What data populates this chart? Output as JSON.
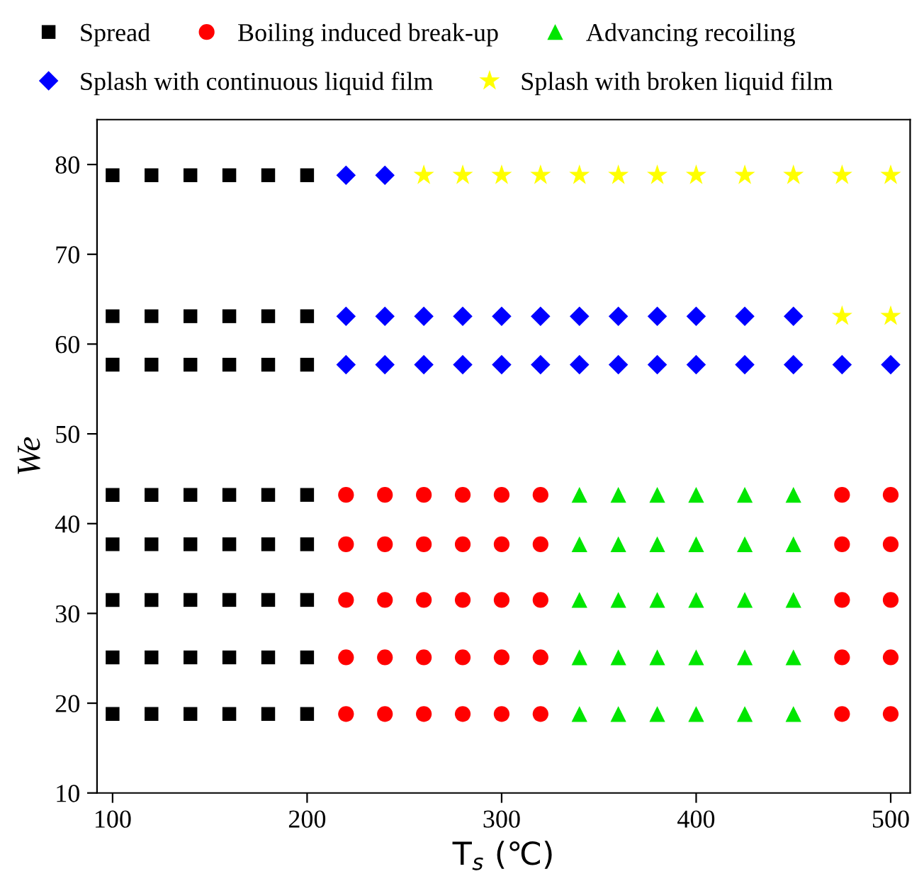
{
  "chart_data": {
    "type": "scatter",
    "xlabel": "T$_{s}$ (℃)",
    "ylabel": "We",
    "xlim": [
      92,
      510
    ],
    "xticks": [
      100,
      200,
      300,
      400,
      500
    ],
    "ylim": [
      10,
      85
    ],
    "yticks": [
      10,
      20,
      30,
      40,
      50,
      60,
      70,
      80
    ],
    "grid": false,
    "legend": "top",
    "series": [
      {
        "name": "Spread",
        "color": "#000000",
        "marker": "square",
        "x": [
          100,
          120,
          140,
          160,
          180,
          200,
          100,
          120,
          140,
          160,
          180,
          200,
          100,
          120,
          140,
          160,
          180,
          200,
          100,
          120,
          140,
          160,
          180,
          200,
          100,
          120,
          140,
          160,
          180,
          200,
          100,
          120,
          140,
          160,
          180,
          200,
          100,
          120,
          140,
          160,
          180,
          200,
          100,
          120,
          140,
          160,
          180,
          200
        ],
        "values": [
          78.8,
          78.8,
          78.8,
          78.8,
          78.8,
          78.8,
          63.1,
          63.1,
          63.1,
          63.1,
          63.1,
          63.1,
          57.7,
          57.7,
          57.7,
          57.7,
          57.7,
          57.7,
          43.2,
          43.2,
          43.2,
          43.2,
          43.2,
          43.2,
          37.7,
          37.7,
          37.7,
          37.7,
          37.7,
          37.7,
          31.5,
          31.5,
          31.5,
          31.5,
          31.5,
          31.5,
          25.1,
          25.1,
          25.1,
          25.1,
          25.1,
          25.1,
          18.8,
          18.8,
          18.8,
          18.8,
          18.8,
          18.8
        ]
      },
      {
        "name": "Boiling induced break-up",
        "color": "#ff0000",
        "marker": "circle",
        "x": [
          220,
          240,
          260,
          280,
          300,
          320,
          475,
          500,
          220,
          240,
          260,
          280,
          300,
          320,
          475,
          500,
          220,
          240,
          260,
          280,
          300,
          320,
          475,
          500,
          220,
          240,
          260,
          280,
          300,
          320,
          475,
          500,
          220,
          240,
          260,
          280,
          300,
          320,
          475,
          500
        ],
        "values": [
          43.2,
          43.2,
          43.2,
          43.2,
          43.2,
          43.2,
          43.2,
          43.2,
          37.7,
          37.7,
          37.7,
          37.7,
          37.7,
          37.7,
          37.7,
          37.7,
          31.5,
          31.5,
          31.5,
          31.5,
          31.5,
          31.5,
          31.5,
          31.5,
          25.1,
          25.1,
          25.1,
          25.1,
          25.1,
          25.1,
          25.1,
          25.1,
          18.8,
          18.8,
          18.8,
          18.8,
          18.8,
          18.8,
          18.8,
          18.8
        ]
      },
      {
        "name": "Advancing recoiling",
        "color": "#00e600",
        "marker": "triangle",
        "x": [
          340,
          360,
          380,
          400,
          425,
          450,
          340,
          360,
          380,
          400,
          425,
          450,
          340,
          360,
          380,
          400,
          425,
          450,
          340,
          360,
          380,
          400,
          425,
          450,
          340,
          360,
          380,
          400,
          425,
          450
        ],
        "values": [
          43.2,
          43.2,
          43.2,
          43.2,
          43.2,
          43.2,
          37.7,
          37.7,
          37.7,
          37.7,
          37.7,
          37.7,
          31.5,
          31.5,
          31.5,
          31.5,
          31.5,
          31.5,
          25.1,
          25.1,
          25.1,
          25.1,
          25.1,
          25.1,
          18.8,
          18.8,
          18.8,
          18.8,
          18.8,
          18.8
        ]
      },
      {
        "name": "Splash with continuous liquid film",
        "color": "#0000ff",
        "marker": "diamond",
        "x": [
          220,
          240,
          220,
          240,
          260,
          280,
          300,
          320,
          340,
          360,
          380,
          400,
          425,
          450,
          220,
          240,
          260,
          280,
          300,
          320,
          340,
          360,
          380,
          400,
          425,
          450,
          475,
          500
        ],
        "values": [
          78.8,
          78.8,
          63.1,
          63.1,
          63.1,
          63.1,
          63.1,
          63.1,
          63.1,
          63.1,
          63.1,
          63.1,
          63.1,
          63.1,
          57.7,
          57.7,
          57.7,
          57.7,
          57.7,
          57.7,
          57.7,
          57.7,
          57.7,
          57.7,
          57.7,
          57.7,
          57.7,
          57.7
        ]
      },
      {
        "name": "Splash with broken liquid film",
        "color": "#ffff00",
        "marker": "star",
        "x": [
          260,
          280,
          300,
          320,
          340,
          360,
          380,
          400,
          425,
          450,
          475,
          500,
          475,
          500
        ],
        "values": [
          78.8,
          78.8,
          78.8,
          78.8,
          78.8,
          78.8,
          78.8,
          78.8,
          78.8,
          78.8,
          78.8,
          78.8,
          63.1,
          63.1
        ]
      }
    ]
  }
}
